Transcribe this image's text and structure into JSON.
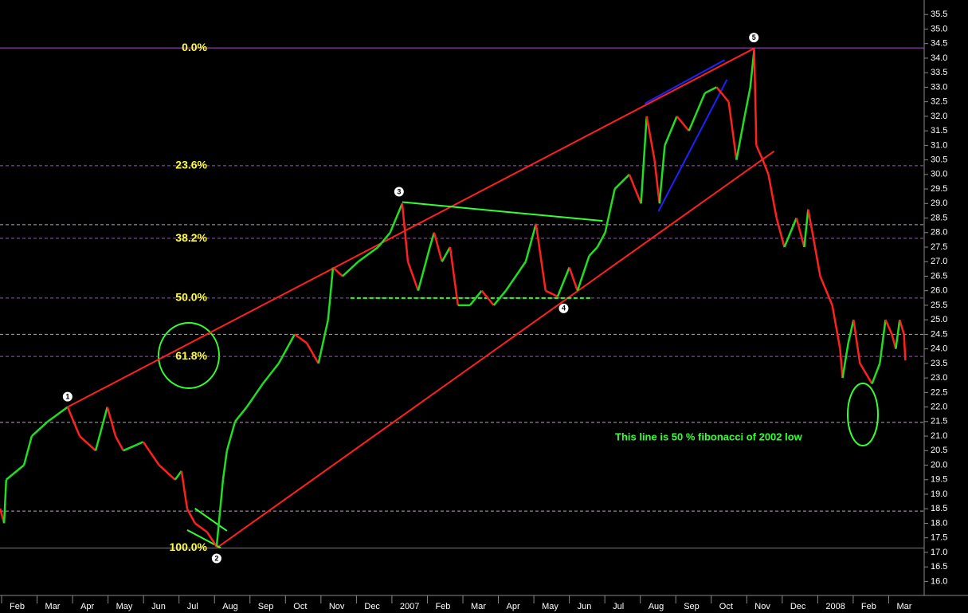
{
  "chart_data": {
    "type": "bar",
    "up_color": "#22dd22",
    "down_color": "#ff2020",
    "x": [
      0.96,
      1.07,
      1.13,
      1.63,
      1.85,
      2.3,
      2.86,
      3.2,
      3.65,
      3.98,
      4.21,
      4.43,
      4.99,
      5.44,
      5.89,
      6.07,
      6.23,
      6.45,
      6.79,
      7.06,
      7.24,
      7.35,
      7.58,
      7.91,
      8.36,
      8.81,
      9.26,
      9.6,
      9.93,
      10.2,
      10.34,
      10.61,
      11.05,
      11.61,
      11.95,
      12.29,
      12.45,
      12.74,
      13.07,
      13.19,
      13.41,
      13.64,
      13.86,
      14.2,
      14.53,
      14.87,
      15.21,
      15.77,
      16.06,
      16.33,
      16.67,
      17.0,
      17.23,
      17.56,
      17.79,
      18.01,
      18.28,
      18.69,
      19.02,
      19.18,
      19.4,
      19.54,
      19.69,
      20.03,
      20.37,
      20.82,
      21.15,
      21.49,
      21.71,
      21.94,
      22.1,
      22.21,
      22.27,
      22.45,
      22.61,
      22.84,
      23.06,
      23.4,
      23.62,
      23.73,
      23.85,
      24.07,
      24.41,
      24.63,
      24.7,
      24.86,
      25.01,
      25.19,
      25.53,
      25.75,
      25.91,
      26.09,
      26.2,
      26.31,
      26.43,
      26.47
    ],
    "values": [
      18.5,
      18.0,
      19.5,
      20.0,
      21.0,
      21.5,
      22.0,
      21.0,
      20.5,
      22.0,
      21.0,
      20.5,
      20.8,
      20.0,
      19.5,
      19.8,
      18.5,
      18.0,
      17.7,
      17.2,
      19.5,
      20.5,
      21.5,
      22.0,
      22.8,
      23.5,
      24.5,
      24.2,
      23.5,
      25.0,
      26.8,
      26.5,
      27.0,
      27.5,
      28.0,
      29.0,
      27.0,
      26.0,
      27.5,
      28.0,
      27.0,
      27.5,
      25.5,
      25.5,
      26.0,
      25.5,
      26.0,
      27.0,
      28.3,
      26.0,
      25.8,
      26.8,
      26.0,
      27.2,
      27.5,
      28.0,
      29.5,
      30.0,
      29.0,
      32.0,
      30.5,
      29.0,
      31.0,
      32.0,
      31.5,
      32.8,
      33.0,
      32.5,
      30.5,
      32.0,
      33.0,
      34.3,
      31.0,
      30.5,
      30.0,
      28.5,
      27.5,
      28.5,
      27.5,
      28.8,
      28.0,
      26.5,
      25.5,
      24.0,
      23.0,
      24.2,
      25.0,
      23.5,
      22.8,
      23.5,
      25.0,
      24.5,
      24.0,
      25.0,
      24.5,
      23.6
    ],
    "xlim": [
      0.955,
      27.0
    ],
    "xticks": [
      {
        "value": 1,
        "label": "Feb"
      },
      {
        "value": 2,
        "label": "Mar"
      },
      {
        "value": 3,
        "label": "Apr"
      },
      {
        "value": 4,
        "label": "May"
      },
      {
        "value": 5,
        "label": "Jun"
      },
      {
        "value": 6,
        "label": "Jul"
      },
      {
        "value": 7,
        "label": "Aug"
      },
      {
        "value": 8,
        "label": "Sep"
      },
      {
        "value": 9,
        "label": "Oct"
      },
      {
        "value": 10,
        "label": "Nov"
      },
      {
        "value": 11,
        "label": "Dec"
      },
      {
        "value": 12,
        "label": "2007"
      },
      {
        "value": 13,
        "label": "Feb"
      },
      {
        "value": 14,
        "label": "Mar"
      },
      {
        "value": 15,
        "label": "Apr"
      },
      {
        "value": 16,
        "label": "May"
      },
      {
        "value": 17,
        "label": "Jun"
      },
      {
        "value": 18,
        "label": "Jul"
      },
      {
        "value": 19,
        "label": "Aug"
      },
      {
        "value": 20,
        "label": "Sep"
      },
      {
        "value": 21,
        "label": "Oct"
      },
      {
        "value": 22,
        "label": "Nov"
      },
      {
        "value": 23,
        "label": "Dec"
      },
      {
        "value": 24,
        "label": "2008"
      },
      {
        "value": 25,
        "label": "Feb"
      },
      {
        "value": 26,
        "label": "Mar"
      }
    ],
    "ylim": [
      15.6,
      36.0
    ],
    "yticks": [
      {
        "value": 16,
        "label": "16.0"
      },
      16.5,
      {
        "value": 17,
        "label": "17.0"
      },
      17.5,
      {
        "value": 18,
        "label": "18.0"
      },
      18.5,
      {
        "value": 19,
        "label": "19.0"
      },
      19.5,
      {
        "value": 20,
        "label": "20.0"
      },
      20.5,
      {
        "value": 21,
        "label": "21.0"
      },
      21.5,
      {
        "value": 22,
        "label": "22.0"
      },
      22.5,
      {
        "value": 23,
        "label": "23.0"
      },
      23.5,
      {
        "value": 24,
        "label": "24.0"
      },
      24.5,
      {
        "value": 25,
        "label": "25.0"
      },
      25.5,
      {
        "value": 26,
        "label": "26.0"
      },
      26.5,
      {
        "value": 27,
        "label": "27.0"
      },
      27.5,
      {
        "value": 28,
        "label": "28.0"
      },
      28.5,
      {
        "value": 29,
        "label": "29.0"
      },
      29.5,
      {
        "value": 30,
        "label": "30.0"
      },
      30.5,
      {
        "value": 31,
        "label": "31.0"
      },
      31.5,
      {
        "value": 32,
        "label": "32.0"
      },
      32.5,
      {
        "value": 33,
        "label": "33.0"
      },
      33.5,
      {
        "value": 34,
        "label": "34.0"
      },
      34.5,
      {
        "value": 35,
        "label": "35.0"
      },
      35.5
    ],
    "fib_levels": [
      {
        "label": "0.0%",
        "price": 34.35,
        "color": "#b050d0",
        "style": "solid"
      },
      {
        "label": "23.6%",
        "price": 30.3,
        "color": "#a050c0",
        "style": "dashed"
      },
      {
        "label": "38.2%",
        "price": 27.8,
        "color": "#a050c0",
        "style": "dashed"
      },
      {
        "label": "50.0%",
        "price": 25.75,
        "color": "#a050c0",
        "style": "dashed"
      },
      {
        "label": "61.8%",
        "price": 23.74,
        "color": "#a050c0",
        "style": "dashed"
      },
      {
        "label": "100.0%",
        "price": 17.15,
        "color": "#b050d0",
        "style": "solid"
      }
    ],
    "reference_lines": [
      28.27,
      24.5,
      21.47,
      18.42
    ],
    "reference_color": "#b8a0c0",
    "trendlines": [
      {
        "x": [
          2.86,
          22.23
        ],
        "y": [
          22.0,
          34.35
        ],
        "color": "#ff2020"
      },
      {
        "x": [
          7.06,
          22.77
        ],
        "y": [
          17.15,
          30.8
        ],
        "color": "#ff2020"
      },
      {
        "x": [
          12.29,
          17.94
        ],
        "y": [
          29.05,
          28.4
        ],
        "color": "#33ff33"
      },
      {
        "x": [
          10.83,
          17.61
        ],
        "y": [
          25.75,
          25.75
        ],
        "color": "#33ff33",
        "style": "dashed"
      },
      {
        "x": [
          6.23,
          7.17
        ],
        "y": [
          17.77,
          17.16
        ],
        "color": "#33ff33"
      },
      {
        "x": [
          6.45,
          7.35
        ],
        "y": [
          18.51,
          17.74
        ],
        "color": "#33ff33"
      },
      {
        "x": [
          19.13,
          21.38
        ],
        "y": [
          32.44,
          33.94
        ],
        "color": "#2020ff"
      },
      {
        "x": [
          19.51,
          21.44
        ],
        "y": [
          28.73,
          33.26
        ],
        "color": "#2020ff"
      }
    ],
    "wave_points": [
      {
        "label": "1",
        "x": 2.86,
        "price": 22.0,
        "place": "above"
      },
      {
        "label": "2",
        "x": 7.06,
        "price": 17.15,
        "place": "below"
      },
      {
        "label": "3",
        "x": 12.2,
        "price": 29.05,
        "place": "above"
      },
      {
        "label": "4",
        "x": 16.84,
        "price": 25.75,
        "place": "below"
      },
      {
        "label": "5",
        "x": 22.2,
        "price": 34.35,
        "place": "above"
      }
    ],
    "annotation": "This line is 50 % fibonacci of 2002 low"
  }
}
